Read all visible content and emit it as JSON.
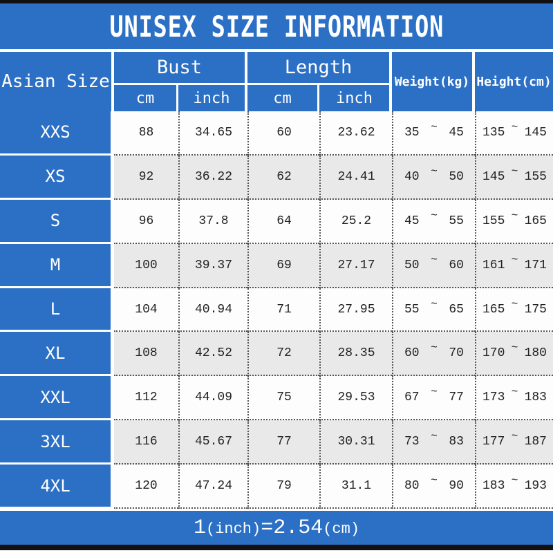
{
  "title": "UNISEX SIZE INFORMATION",
  "header": {
    "size_col": "Asian Size",
    "bust": "Bust",
    "length": "Length",
    "weight": "Weight(kg)",
    "height": "Height(cm)",
    "bust_cm": "cm",
    "bust_inch": "inch",
    "length_cm": "cm",
    "length_inch": "inch",
    "range_separator": "~"
  },
  "rows": [
    {
      "size": "XXS",
      "bust_cm": "88",
      "bust_inch": "34.65",
      "length_cm": "60",
      "length_inch": "23.62",
      "weight_min": "35",
      "weight_max": "45",
      "height_min": "135",
      "height_max": "145"
    },
    {
      "size": "XS",
      "bust_cm": "92",
      "bust_inch": "36.22",
      "length_cm": "62",
      "length_inch": "24.41",
      "weight_min": "40",
      "weight_max": "50",
      "height_min": "145",
      "height_max": "155"
    },
    {
      "size": "S",
      "bust_cm": "96",
      "bust_inch": "37.8",
      "length_cm": "64",
      "length_inch": "25.2",
      "weight_min": "45",
      "weight_max": "55",
      "height_min": "155",
      "height_max": "165"
    },
    {
      "size": "M",
      "bust_cm": "100",
      "bust_inch": "39.37",
      "length_cm": "69",
      "length_inch": "27.17",
      "weight_min": "50",
      "weight_max": "60",
      "height_min": "161",
      "height_max": "171"
    },
    {
      "size": "L",
      "bust_cm": "104",
      "bust_inch": "40.94",
      "length_cm": "71",
      "length_inch": "27.95",
      "weight_min": "55",
      "weight_max": "65",
      "height_min": "165",
      "height_max": "175"
    },
    {
      "size": "XL",
      "bust_cm": "108",
      "bust_inch": "42.52",
      "length_cm": "72",
      "length_inch": "28.35",
      "weight_min": "60",
      "weight_max": "70",
      "height_min": "170",
      "height_max": "180"
    },
    {
      "size": "XXL",
      "bust_cm": "112",
      "bust_inch": "44.09",
      "length_cm": "75",
      "length_inch": "29.53",
      "weight_min": "67",
      "weight_max": "77",
      "height_min": "173",
      "height_max": "183"
    },
    {
      "size": "3XL",
      "bust_cm": "116",
      "bust_inch": "45.67",
      "length_cm": "77",
      "length_inch": "30.31",
      "weight_min": "73",
      "weight_max": "83",
      "height_min": "177",
      "height_max": "187"
    },
    {
      "size": "4XL",
      "bust_cm": "120",
      "bust_inch": "47.24",
      "length_cm": "79",
      "length_inch": "31.1",
      "weight_min": "80",
      "weight_max": "90",
      "height_min": "183",
      "height_max": "193"
    }
  ],
  "footer": {
    "one": "1",
    "inch_label": "(inch)",
    "equals": "=2.54",
    "cm_label": "(cm)"
  },
  "colors": {
    "blue": "#2C70C5",
    "row_white": "#FDFDFD",
    "row_gray": "#E9E9E9",
    "border_black": "#111111",
    "dotted_line": "#555555",
    "text_dark": "#222222",
    "text_white": "#FFFFFF"
  }
}
